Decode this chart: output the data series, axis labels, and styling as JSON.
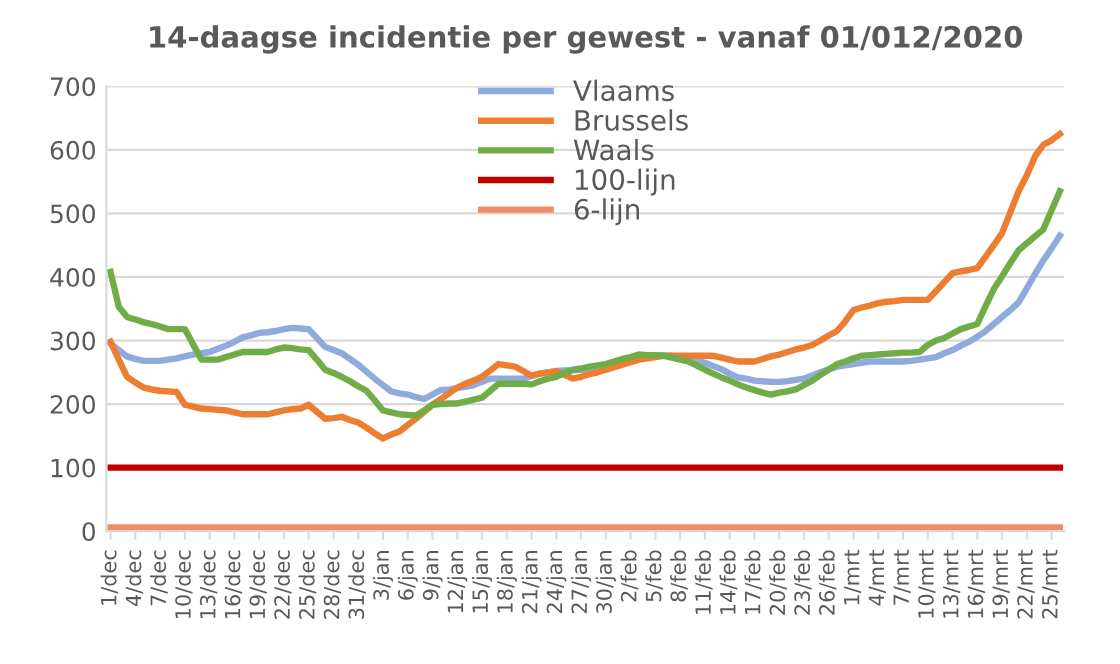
{
  "chart_data": {
    "type": "line",
    "title": "14-daagse incidentie per gewest - vanaf 01/012/2020",
    "categories": [
      "1/dec",
      null,
      null,
      "4/dec",
      null,
      null,
      "7/dec",
      null,
      null,
      "10/dec",
      null,
      null,
      "13/dec",
      null,
      null,
      "16/dec",
      null,
      null,
      "19/dec",
      null,
      null,
      "22/dec",
      null,
      null,
      "25/dec",
      null,
      null,
      "28/dec",
      null,
      null,
      "31/dec",
      null,
      null,
      "3/jan",
      null,
      null,
      "6/jan",
      null,
      null,
      "9/jan",
      null,
      null,
      "12/jan",
      null,
      null,
      "15/jan",
      null,
      null,
      "18/jan",
      null,
      null,
      "21/jan",
      null,
      null,
      "24/jan",
      null,
      null,
      "27/jan",
      null,
      null,
      "30/jan",
      null,
      null,
      "2/feb",
      null,
      null,
      "5/feb",
      null,
      null,
      "8/feb",
      null,
      null,
      "11/feb",
      null,
      null,
      "14/feb",
      null,
      null,
      "17/feb",
      null,
      null,
      "20/feb",
      null,
      null,
      "23/feb",
      null,
      null,
      "26/feb",
      null,
      null,
      "1/mrt",
      null,
      null,
      "4/mrt",
      null,
      null,
      "7/mrt",
      null,
      null,
      "10/mrt",
      null,
      null,
      "13/mrt",
      null,
      null,
      "16/mrt",
      null,
      null,
      "19/mrt",
      null,
      null,
      "22/mrt",
      null,
      null,
      "25/mrt",
      null
    ],
    "series": [
      {
        "name": "Vlaams",
        "color": "#8faadc",
        "values": [
          295,
          285,
          275,
          271,
          268,
          268,
          268,
          270,
          272,
          275,
          278,
          280,
          282,
          287,
          292,
          298,
          305,
          308,
          312,
          313,
          315,
          318,
          320,
          319,
          318,
          304,
          290,
          285,
          280,
          271,
          262,
          251,
          240,
          230,
          220,
          217,
          215,
          211,
          208,
          215,
          222,
          223,
          225,
          227,
          230,
          235,
          240,
          240,
          240,
          240,
          240,
          244,
          248,
          250,
          252,
          253,
          253,
          254,
          255,
          258,
          262,
          266,
          270,
          272,
          275,
          276,
          277,
          276,
          276,
          274,
          272,
          268,
          265,
          260,
          255,
          248,
          242,
          240,
          237,
          236,
          235,
          235,
          236,
          238,
          240,
          245,
          250,
          255,
          259,
          261,
          263,
          265,
          267,
          267,
          267,
          267,
          267,
          268,
          270,
          272,
          274,
          280,
          285,
          292,
          298,
          306,
          315,
          326,
          337,
          348,
          360,
          382,
          405,
          426,
          445,
          465
        ]
      },
      {
        "name": "Brussels",
        "color": "#ed7d31",
        "values": [
          298,
          270,
          243,
          234,
          226,
          223,
          221,
          220,
          219,
          199,
          196,
          193,
          192,
          191,
          190,
          187,
          184,
          184,
          184,
          184,
          187,
          190,
          192,
          193,
          199,
          188,
          177,
          178,
          180,
          175,
          171,
          163,
          154,
          146,
          152,
          157,
          167,
          177,
          188,
          199,
          208,
          217,
          226,
          232,
          237,
          243,
          253,
          263,
          261,
          259,
          252,
          245,
          248,
          250,
          252,
          246,
          240,
          243,
          247,
          250,
          254,
          258,
          262,
          266,
          270,
          272,
          274,
          276,
          276,
          276,
          276,
          276,
          276,
          276,
          273,
          270,
          267,
          267,
          267,
          271,
          275,
          278,
          282,
          286,
          289,
          293,
          300,
          308,
          315,
          330,
          348,
          352,
          355,
          359,
          361,
          362,
          364,
          364,
          364,
          364,
          378,
          392,
          406,
          409,
          411,
          414,
          432,
          450,
          469,
          502,
          535,
          560,
          590,
          608,
          615,
          625
        ]
      },
      {
        "name": "Waals",
        "color": "#70ad47",
        "values": [
          408,
          353,
          337,
          333,
          329,
          326,
          322,
          318,
          318,
          318,
          294,
          270,
          270,
          270,
          274,
          278,
          282,
          282,
          282,
          282,
          286,
          289,
          288,
          286,
          285,
          270,
          254,
          249,
          243,
          236,
          228,
          221,
          206,
          190,
          187,
          184,
          183,
          182,
          190,
          199,
          200,
          201,
          201,
          204,
          207,
          210,
          221,
          232,
          232,
          232,
          232,
          231,
          236,
          240,
          243,
          249,
          254,
          256,
          259,
          261,
          263,
          267,
          271,
          274,
          278,
          277,
          277,
          276,
          273,
          270,
          267,
          261,
          254,
          248,
          242,
          237,
          231,
          226,
          222,
          218,
          215,
          218,
          220,
          223,
          230,
          237,
          246,
          254,
          263,
          267,
          272,
          276,
          277,
          278,
          279,
          280,
          281,
          281,
          282,
          293,
          300,
          304,
          311,
          318,
          322,
          326,
          354,
          381,
          401,
          422,
          442,
          453,
          464,
          475,
          505,
          535
        ]
      },
      {
        "name": "100-lijn",
        "color": "#c00000",
        "values": [
          100,
          100,
          100,
          100,
          100,
          100,
          100,
          100,
          100,
          100,
          100,
          100,
          100,
          100,
          100,
          100,
          100,
          100,
          100,
          100,
          100,
          100,
          100,
          100,
          100,
          100,
          100,
          100,
          100,
          100,
          100,
          100,
          100,
          100,
          100,
          100,
          100,
          100,
          100,
          100,
          100,
          100,
          100,
          100,
          100,
          100,
          100,
          100,
          100,
          100,
          100,
          100,
          100,
          100,
          100,
          100,
          100,
          100,
          100,
          100,
          100,
          100,
          100,
          100,
          100,
          100,
          100,
          100,
          100,
          100,
          100,
          100,
          100,
          100,
          100,
          100,
          100,
          100,
          100,
          100,
          100,
          100,
          100,
          100,
          100,
          100,
          100,
          100,
          100,
          100,
          100,
          100,
          100,
          100,
          100,
          100,
          100,
          100,
          100,
          100,
          100,
          100,
          100,
          100,
          100,
          100,
          100,
          100,
          100,
          100,
          100,
          100,
          100,
          100,
          100,
          100
        ]
      },
      {
        "name": "6-lijn",
        "color": "#f08c6c",
        "values": [
          6,
          6,
          6,
          6,
          6,
          6,
          6,
          6,
          6,
          6,
          6,
          6,
          6,
          6,
          6,
          6,
          6,
          6,
          6,
          6,
          6,
          6,
          6,
          6,
          6,
          6,
          6,
          6,
          6,
          6,
          6,
          6,
          6,
          6,
          6,
          6,
          6,
          6,
          6,
          6,
          6,
          6,
          6,
          6,
          6,
          6,
          6,
          6,
          6,
          6,
          6,
          6,
          6,
          6,
          6,
          6,
          6,
          6,
          6,
          6,
          6,
          6,
          6,
          6,
          6,
          6,
          6,
          6,
          6,
          6,
          6,
          6,
          6,
          6,
          6,
          6,
          6,
          6,
          6,
          6,
          6,
          6,
          6,
          6,
          6,
          6,
          6,
          6,
          6,
          6,
          6,
          6,
          6,
          6,
          6,
          6,
          6,
          6,
          6,
          6,
          6,
          6,
          6,
          6,
          6,
          6,
          6,
          6,
          6,
          6,
          6,
          6,
          6,
          6,
          6,
          6
        ]
      }
    ],
    "ylim": [
      0,
      700
    ],
    "yticks": [
      0,
      100,
      200,
      300,
      400,
      500,
      600,
      700
    ],
    "grid": "y",
    "legend": "top",
    "marker": "none",
    "line_style": "solid"
  }
}
